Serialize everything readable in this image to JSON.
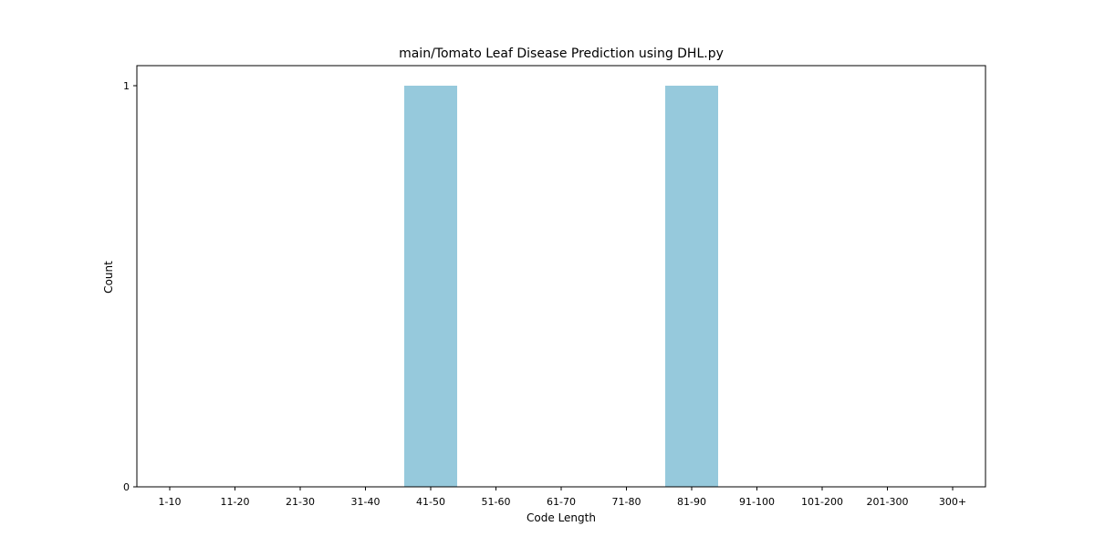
{
  "chart_data": {
    "type": "bar",
    "title": "main/Tomato Leaf Disease Prediction using DHL.py",
    "xlabel": "Code Length",
    "ylabel": "Count",
    "categories": [
      "1-10",
      "11-20",
      "21-30",
      "31-40",
      "41-50",
      "51-60",
      "61-70",
      "71-80",
      "81-90",
      "91-100",
      "101-200",
      "201-300",
      "300+"
    ],
    "values": [
      0,
      0,
      0,
      0,
      1,
      0,
      0,
      0,
      1,
      0,
      0,
      0,
      0
    ],
    "yticks": [
      0,
      1
    ],
    "ylim": [
      0,
      1
    ],
    "grid": false,
    "bar_color": "#96c9dc"
  }
}
